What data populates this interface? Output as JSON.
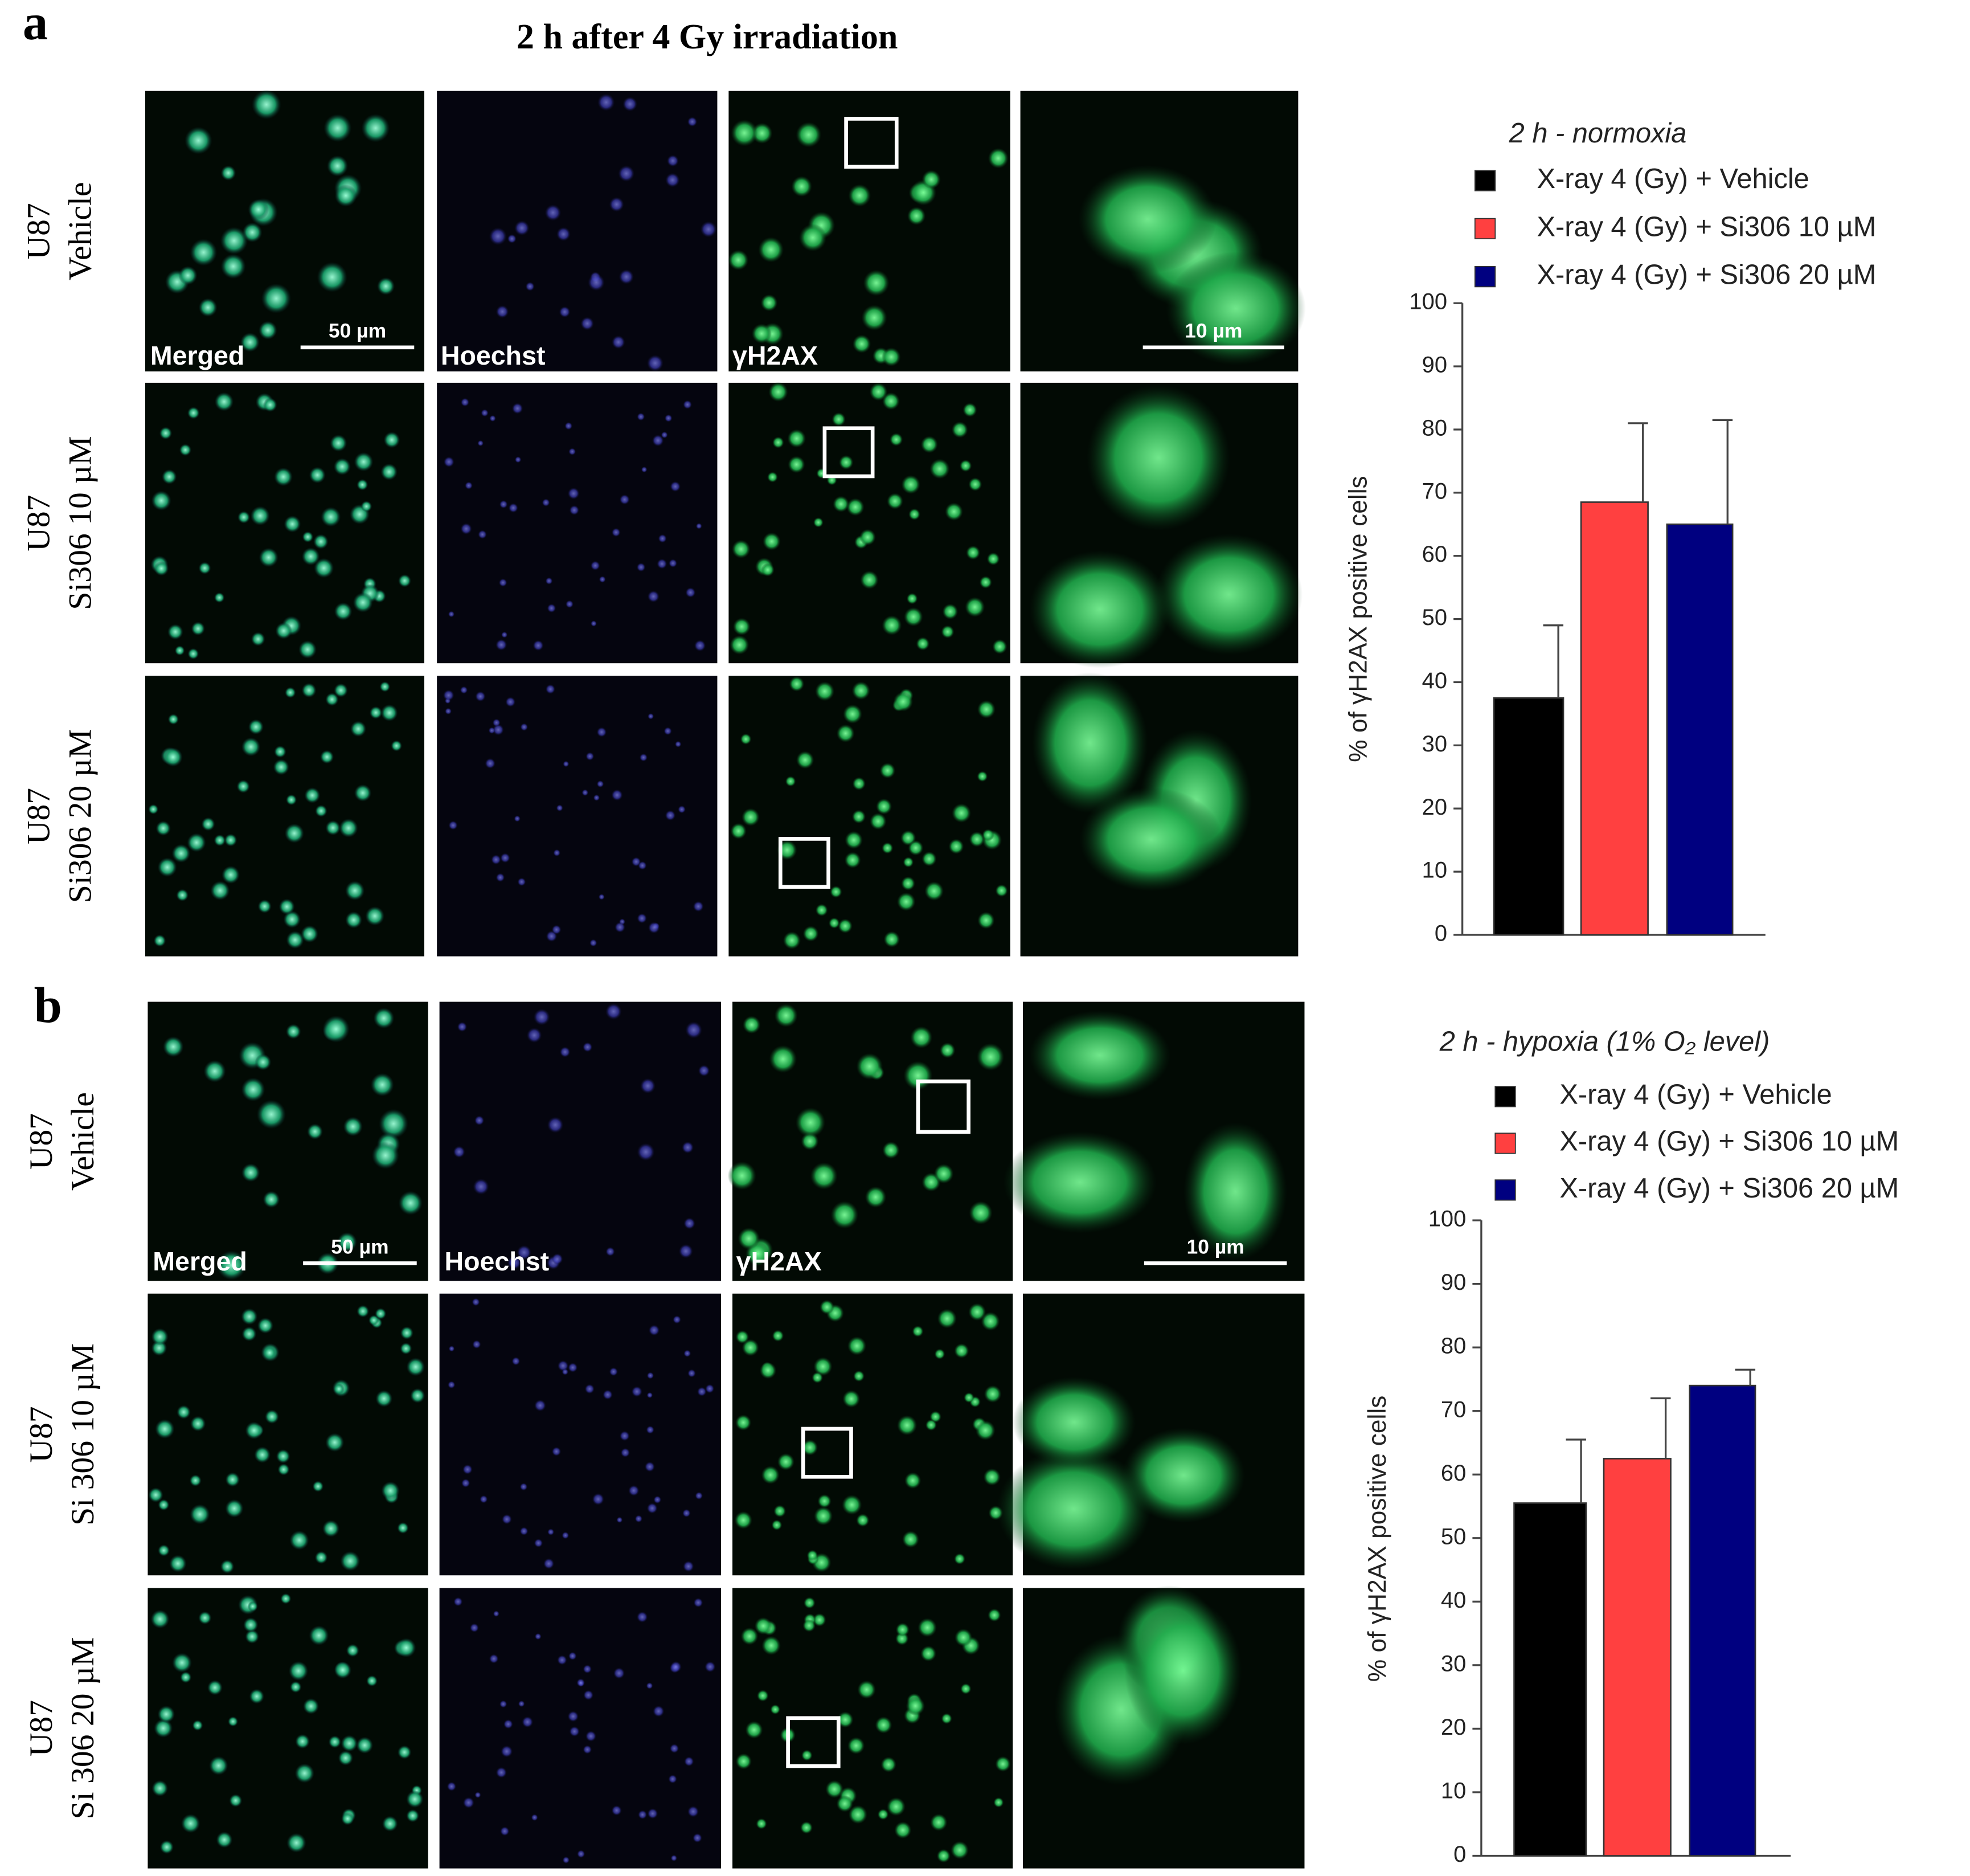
{
  "figure": {
    "panels": [
      {
        "label": "a",
        "title": "2 h after 4 Gy irradiation",
        "rows": [
          [
            "U87",
            "Vehicle"
          ],
          [
            "U87",
            "Si306 10 µM"
          ],
          [
            "U87",
            "Si306 20 µM"
          ]
        ],
        "image_labels": [
          "Merged",
          "Hoechst",
          "γH2AX"
        ],
        "scale_bars": [
          "50 µm",
          "10 µm"
        ]
      },
      {
        "label": "b",
        "rows": [
          [
            "U87",
            "Vehicle"
          ],
          [
            "U87",
            "Si 306 10 µM"
          ],
          [
            "U87",
            "Si 306 20 µM"
          ]
        ],
        "image_labels": [
          "Merged",
          "Hoechst",
          "γH2AX"
        ],
        "scale_bars": [
          "50 µm",
          "10 µm"
        ]
      }
    ]
  },
  "chart_data": [
    {
      "type": "bar",
      "title": "2 h - normoxia",
      "y_label": "% of γH2AX positive cells",
      "ylim": [
        0,
        100
      ],
      "yticks": [
        0,
        10,
        20,
        30,
        40,
        50,
        60,
        70,
        80,
        90,
        100
      ],
      "series": [
        {
          "name": "X-ray 4 (Gy) + Vehicle",
          "color": "#000000",
          "values": [
            37.5
          ],
          "errors": [
            11.5
          ]
        },
        {
          "name": "X-ray 4 (Gy) + Si306 10 µM",
          "color": "#ff4040",
          "values": [
            68.5
          ],
          "errors": [
            12.5
          ]
        },
        {
          "name": "X-ray 4 (Gy) + Si306 20 µM",
          "color": "#000080",
          "values": [
            65
          ],
          "errors": [
            16.5
          ]
        }
      ]
    },
    {
      "type": "bar",
      "title": "2 h - hypoxia (1% O₂ level)",
      "y_label": "% of γH2AX positive cells",
      "ylim": [
        0,
        100
      ],
      "yticks": [
        0,
        10,
        20,
        30,
        40,
        50,
        60,
        70,
        80,
        90,
        100
      ],
      "series": [
        {
          "name": "X-ray 4 (Gy) + Vehicle",
          "color": "#000000",
          "values": [
            55.5
          ],
          "errors": [
            10
          ]
        },
        {
          "name": "X-ray 4 (Gy) + Si306 10 µM",
          "color": "#ff4040",
          "values": [
            62.5
          ],
          "errors": [
            9.5
          ]
        },
        {
          "name": "X-ray 4 (Gy) + Si306 20 µM",
          "color": "#000080",
          "values": [
            74
          ],
          "errors": [
            2.5
          ]
        }
      ]
    }
  ]
}
